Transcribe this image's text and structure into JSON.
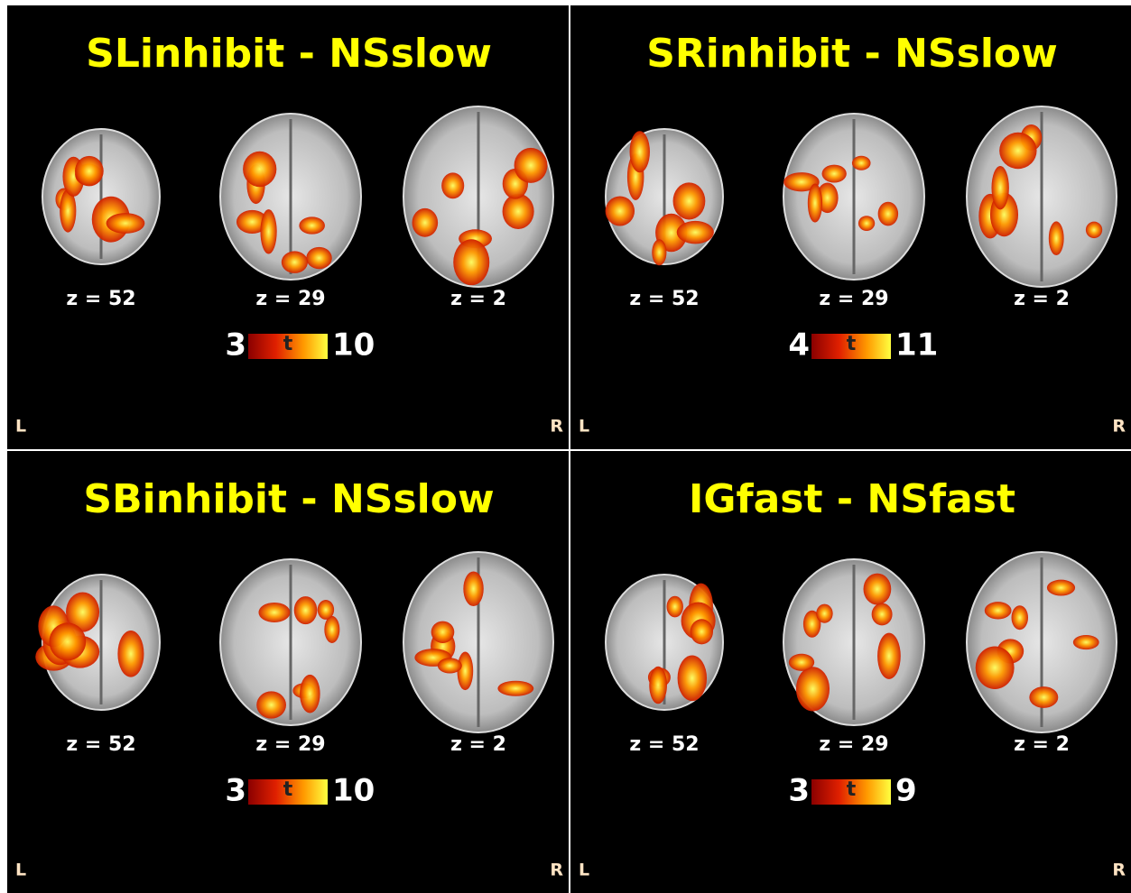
{
  "panels": [
    {
      "title": "SLinhibit - NSslow",
      "slices": [
        "z = 52",
        "z = 29",
        "z = 2"
      ],
      "colorbar": {
        "min": 3,
        "label": "t",
        "max": 10
      },
      "left": "L",
      "right": "R"
    },
    {
      "title": "SRinhibit - NSslow",
      "slices": [
        "z = 52",
        "z = 29",
        "z = 2"
      ],
      "colorbar": {
        "min": 4,
        "label": "t",
        "max": 11
      },
      "left": "L",
      "right": "R"
    },
    {
      "title": "SBinhibit - NSslow",
      "slices": [
        "z = 52",
        "z = 29",
        "z = 2"
      ],
      "colorbar": {
        "min": 3,
        "label": "t",
        "max": 10
      },
      "left": "L",
      "right": "R"
    },
    {
      "title": "IGfast - NSfast",
      "slices": [
        "z = 52",
        "z = 29",
        "z = 2"
      ],
      "colorbar": {
        "min": 3,
        "label": "t",
        "max": 9
      },
      "left": "L",
      "right": "R"
    }
  ]
}
